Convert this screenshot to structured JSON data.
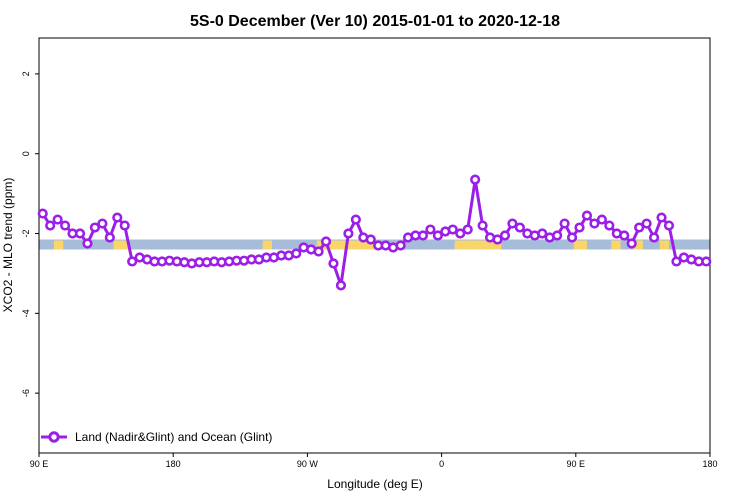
{
  "chart_data": {
    "type": "line",
    "title": "5S-0 December (Ver 10)   2015-01-01 to 2020-12-18",
    "xlabel": "Longitude (deg E)",
    "ylabel": "XCO2 - MLO trend (ppm)",
    "xlim": [
      90,
      450
    ],
    "ylim": [
      -7.5,
      2.9
    ],
    "x_ticks": [
      {
        "value": 90,
        "label": "90 E"
      },
      {
        "value": 162,
        "label": "180"
      },
      {
        "value": 234,
        "label": "90 W"
      },
      {
        "value": 306,
        "label": "0"
      },
      {
        "value": 378,
        "label": "90 E"
      },
      {
        "value": 450,
        "label": "180"
      }
    ],
    "y_ticks": [
      {
        "value": 2,
        "label": "2"
      },
      {
        "value": 0,
        "label": "0"
      },
      {
        "value": -2,
        "label": "-2"
      },
      {
        "value": -4,
        "label": "-4"
      },
      {
        "value": -6,
        "label": "-6"
      }
    ],
    "band": {
      "ymin": -2.4,
      "ymax": -2.15,
      "ocean_color": "#a6bcd9",
      "land_color": "#f9d56a"
    },
    "land_ranges": [
      [
        98,
        103
      ],
      [
        130,
        138
      ],
      [
        210,
        215
      ],
      [
        239,
        270
      ],
      [
        313,
        322
      ],
      [
        322,
        338
      ],
      [
        377,
        384
      ],
      [
        397,
        402
      ],
      [
        409,
        414
      ],
      [
        423,
        428
      ]
    ],
    "series": [
      {
        "name": "Land (Nadir&Glint) and Ocean (Glint)",
        "color": "#9c1fe8",
        "points": [
          [
            92,
            -1.5
          ],
          [
            96,
            -1.8
          ],
          [
            100,
            -1.65
          ],
          [
            104,
            -1.8
          ],
          [
            108,
            -2.0
          ],
          [
            112,
            -2.0
          ],
          [
            116,
            -2.25
          ],
          [
            120,
            -1.85
          ],
          [
            124,
            -1.75
          ],
          [
            128,
            -2.1
          ],
          [
            132,
            -1.6
          ],
          [
            136,
            -1.8
          ],
          [
            140,
            -2.7
          ],
          [
            144,
            -2.6
          ],
          [
            148,
            -2.65
          ],
          [
            152,
            -2.7
          ],
          [
            156,
            -2.7
          ],
          [
            160,
            -2.68
          ],
          [
            164,
            -2.7
          ],
          [
            168,
            -2.72
          ],
          [
            172,
            -2.75
          ],
          [
            176,
            -2.72
          ],
          [
            180,
            -2.72
          ],
          [
            184,
            -2.7
          ],
          [
            188,
            -2.72
          ],
          [
            192,
            -2.7
          ],
          [
            196,
            -2.68
          ],
          [
            200,
            -2.68
          ],
          [
            204,
            -2.65
          ],
          [
            208,
            -2.65
          ],
          [
            212,
            -2.6
          ],
          [
            216,
            -2.6
          ],
          [
            220,
            -2.55
          ],
          [
            224,
            -2.55
          ],
          [
            228,
            -2.5
          ],
          [
            232,
            -2.35
          ],
          [
            236,
            -2.4
          ],
          [
            240,
            -2.45
          ],
          [
            244,
            -2.2
          ],
          [
            248,
            -2.75
          ],
          [
            252,
            -3.3
          ],
          [
            256,
            -2.0
          ],
          [
            260,
            -1.65
          ],
          [
            264,
            -2.1
          ],
          [
            268,
            -2.15
          ],
          [
            272,
            -2.3
          ],
          [
            276,
            -2.3
          ],
          [
            280,
            -2.35
          ],
          [
            284,
            -2.3
          ],
          [
            288,
            -2.1
          ],
          [
            292,
            -2.05
          ],
          [
            296,
            -2.05
          ],
          [
            300,
            -1.9
          ],
          [
            304,
            -2.05
          ],
          [
            308,
            -1.95
          ],
          [
            312,
            -1.9
          ],
          [
            316,
            -2.0
          ],
          [
            320,
            -1.9
          ],
          [
            324,
            -0.65
          ],
          [
            328,
            -1.8
          ],
          [
            332,
            -2.1
          ],
          [
            336,
            -2.15
          ],
          [
            340,
            -2.05
          ],
          [
            344,
            -1.75
          ],
          [
            348,
            -1.85
          ],
          [
            352,
            -2.0
          ],
          [
            356,
            -2.05
          ],
          [
            360,
            -2.0
          ],
          [
            364,
            -2.1
          ],
          [
            368,
            -2.05
          ],
          [
            372,
            -1.75
          ],
          [
            376,
            -2.1
          ],
          [
            380,
            -1.85
          ],
          [
            384,
            -1.55
          ],
          [
            388,
            -1.75
          ],
          [
            392,
            -1.65
          ],
          [
            396,
            -1.8
          ],
          [
            400,
            -2.0
          ],
          [
            404,
            -2.05
          ],
          [
            408,
            -2.25
          ],
          [
            412,
            -1.85
          ],
          [
            416,
            -1.75
          ],
          [
            420,
            -2.1
          ],
          [
            424,
            -1.6
          ],
          [
            428,
            -1.8
          ],
          [
            432,
            -2.7
          ],
          [
            436,
            -2.6
          ],
          [
            440,
            -2.65
          ],
          [
            444,
            -2.7
          ],
          [
            448,
            -2.7
          ]
        ]
      }
    ],
    "legend": {
      "position": "bottom-left",
      "label": "Land (Nadir&Glint) and Ocean (Glint)"
    }
  }
}
